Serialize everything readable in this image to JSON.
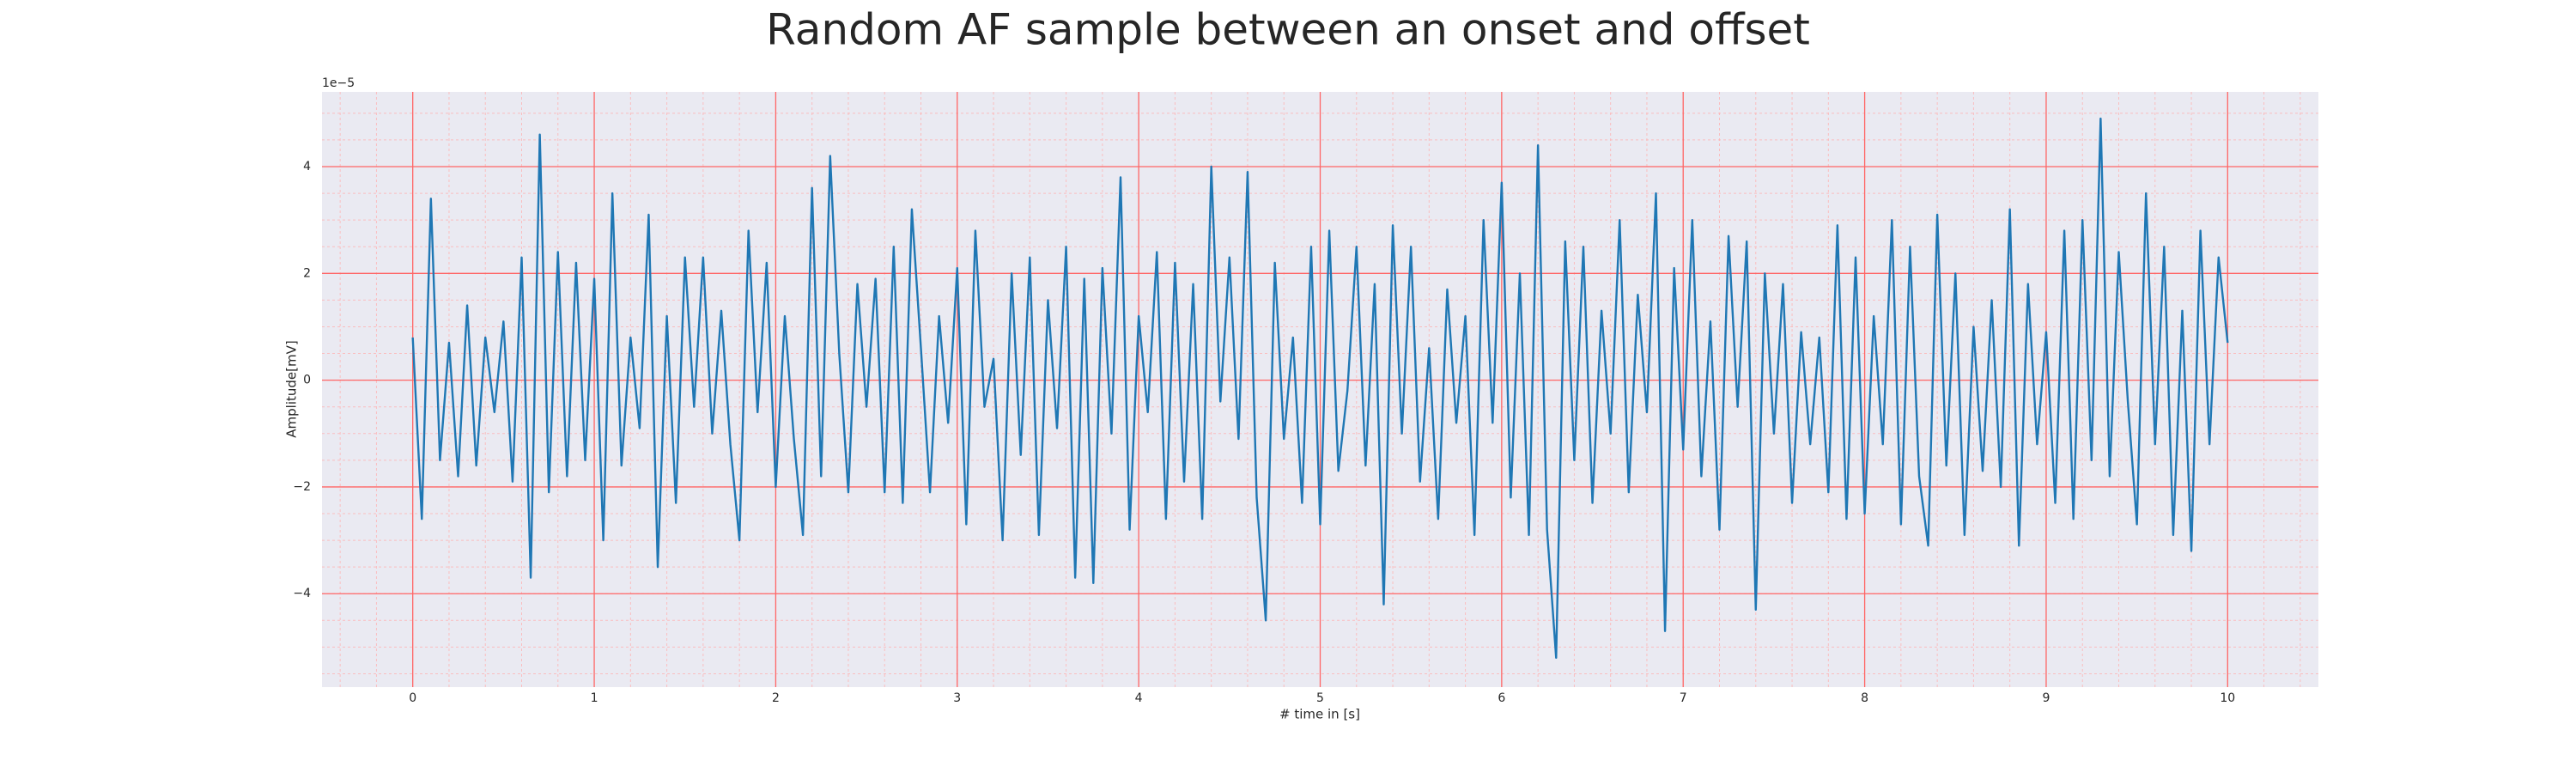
{
  "chart_data": {
    "type": "line",
    "title": "Random AF sample between an onset and offset",
    "xlabel": "# time in [s]",
    "ylabel": "Amplitude[mV]",
    "offset_label": "1e−5",
    "color": "#1f77b4",
    "grid": true,
    "minor_grid": true,
    "xlim": [
      -0.5,
      10.5
    ],
    "ylim": [
      -5.75,
      5.4
    ],
    "xticks": [
      0,
      1,
      2,
      3,
      4,
      5,
      6,
      7,
      8,
      9,
      10
    ],
    "yticks": [
      {
        "value": -4,
        "label": "−4"
      },
      {
        "value": -2,
        "label": "−2"
      },
      0,
      2,
      4
    ],
    "x": [
      0,
      0.05,
      0.1,
      0.15,
      0.2,
      0.25,
      0.3,
      0.35,
      0.4,
      0.45,
      0.5,
      0.55,
      0.6,
      0.65,
      0.7,
      0.75,
      0.8,
      0.85,
      0.9,
      0.95,
      1,
      1.05,
      1.1,
      1.15,
      1.2,
      1.25,
      1.3,
      1.35,
      1.4,
      1.45,
      1.5,
      1.55,
      1.6,
      1.65,
      1.7,
      1.75,
      1.8,
      1.85,
      1.9,
      1.95,
      2,
      2.05,
      2.1,
      2.15,
      2.2,
      2.25,
      2.3,
      2.35,
      2.4,
      2.45,
      2.5,
      2.55,
      2.6,
      2.65,
      2.7,
      2.75,
      2.8,
      2.85,
      2.9,
      2.95,
      3,
      3.05,
      3.1,
      3.15,
      3.2,
      3.25,
      3.3,
      3.35,
      3.4,
      3.45,
      3.5,
      3.55,
      3.6,
      3.65,
      3.7,
      3.75,
      3.8,
      3.85,
      3.9,
      3.95,
      4,
      4.05,
      4.1,
      4.15,
      4.2,
      4.25,
      4.3,
      4.35,
      4.4,
      4.45,
      4.5,
      4.55,
      4.6,
      4.65,
      4.7,
      4.75,
      4.8,
      4.85,
      4.9,
      4.95,
      5,
      5.05,
      5.1,
      5.15,
      5.2,
      5.25,
      5.3,
      5.35,
      5.4,
      5.45,
      5.5,
      5.55,
      5.6,
      5.65,
      5.7,
      5.75,
      5.8,
      5.85,
      5.9,
      5.95,
      6,
      6.05,
      6.1,
      6.15,
      6.2,
      6.25,
      6.3,
      6.35,
      6.4,
      6.45,
      6.5,
      6.55,
      6.6,
      6.65,
      6.7,
      6.75,
      6.8,
      6.85,
      6.9,
      6.95,
      7,
      7.05,
      7.1,
      7.15,
      7.2,
      7.25,
      7.3,
      7.35,
      7.4,
      7.45,
      7.5,
      7.55,
      7.6,
      7.65,
      7.7,
      7.75,
      7.8,
      7.85,
      7.9,
      7.95,
      8,
      8.05,
      8.1,
      8.15,
      8.2,
      8.25,
      8.3,
      8.35,
      8.4,
      8.45,
      8.5,
      8.55,
      8.6,
      8.65,
      8.7,
      8.75,
      8.8,
      8.85,
      8.9,
      8.95,
      9,
      9.05,
      9.1,
      9.15,
      9.2,
      9.25,
      9.3,
      9.35,
      9.4,
      9.45,
      9.5,
      9.55,
      9.6,
      9.65,
      9.7,
      9.75,
      9.8,
      9.85,
      9.9,
      9.95,
      10
    ],
    "values": [
      0.8,
      -2.6,
      3.4,
      -1.5,
      0.7,
      -1.8,
      1.4,
      -1.6,
      0.8,
      -0.6,
      1.1,
      -1.9,
      2.3,
      -3.7,
      4.6,
      -2.1,
      2.4,
      -1.8,
      2.2,
      -1.5,
      1.9,
      -3.0,
      3.5,
      -1.6,
      0.8,
      -0.9,
      3.1,
      -3.5,
      1.2,
      -2.3,
      2.3,
      -0.5,
      2.3,
      -1.0,
      1.3,
      -1.2,
      -3.0,
      2.8,
      -0.6,
      2.2,
      -2.0,
      1.2,
      -1.1,
      -2.9,
      3.6,
      -1.8,
      4.2,
      0.5,
      -2.1,
      1.8,
      -0.5,
      1.9,
      -2.1,
      2.5,
      -2.3,
      3.2,
      0.6,
      -2.1,
      1.2,
      -0.8,
      2.1,
      -2.7,
      2.8,
      -0.5,
      0.4,
      -3.0,
      2.0,
      -1.4,
      2.3,
      -2.9,
      1.5,
      -0.9,
      2.5,
      -3.7,
      1.9,
      -3.8,
      2.1,
      -1.0,
      3.8,
      -2.8,
      1.2,
      -0.6,
      2.4,
      -2.6,
      2.2,
      -1.9,
      1.8,
      -2.6,
      4.0,
      -0.4,
      2.3,
      -1.1,
      3.9,
      -2.2,
      -4.5,
      2.2,
      -1.1,
      0.8,
      -2.3,
      2.5,
      -2.7,
      2.8,
      -1.7,
      -0.2,
      2.5,
      -1.6,
      1.8,
      -4.2,
      2.9,
      -1.0,
      2.5,
      -1.9,
      0.6,
      -2.6,
      1.7,
      -0.8,
      1.2,
      -2.9,
      3.0,
      -0.8,
      3.7,
      -2.2,
      2.0,
      -2.9,
      4.4,
      -2.8,
      -5.2,
      2.6,
      -1.5,
      2.5,
      -2.3,
      1.3,
      -1.0,
      3.0,
      -2.1,
      1.6,
      -0.6,
      3.5,
      -4.7,
      2.1,
      -1.3,
      3.0,
      -1.8,
      1.1,
      -2.8,
      2.7,
      -0.5,
      2.6,
      -4.3,
      2.0,
      -1.0,
      1.8,
      -2.3,
      0.9,
      -1.2,
      0.8,
      -2.1,
      2.9,
      -2.6,
      2.3,
      -2.5,
      1.2,
      -1.2,
      3.0,
      -2.7,
      2.5,
      -1.8,
      -3.1,
      3.1,
      -1.6,
      2.0,
      -2.9,
      1.0,
      -1.7,
      1.5,
      -2.0,
      3.2,
      -3.1,
      1.8,
      -1.2,
      0.9,
      -2.3,
      2.8,
      -2.6,
      3.0,
      -1.5,
      4.9,
      -1.8,
      2.4,
      -0.4,
      -2.7,
      3.5,
      -1.2,
      2.5,
      -2.9,
      1.3,
      -3.2,
      2.8,
      -1.2,
      2.3,
      0.7
    ]
  }
}
